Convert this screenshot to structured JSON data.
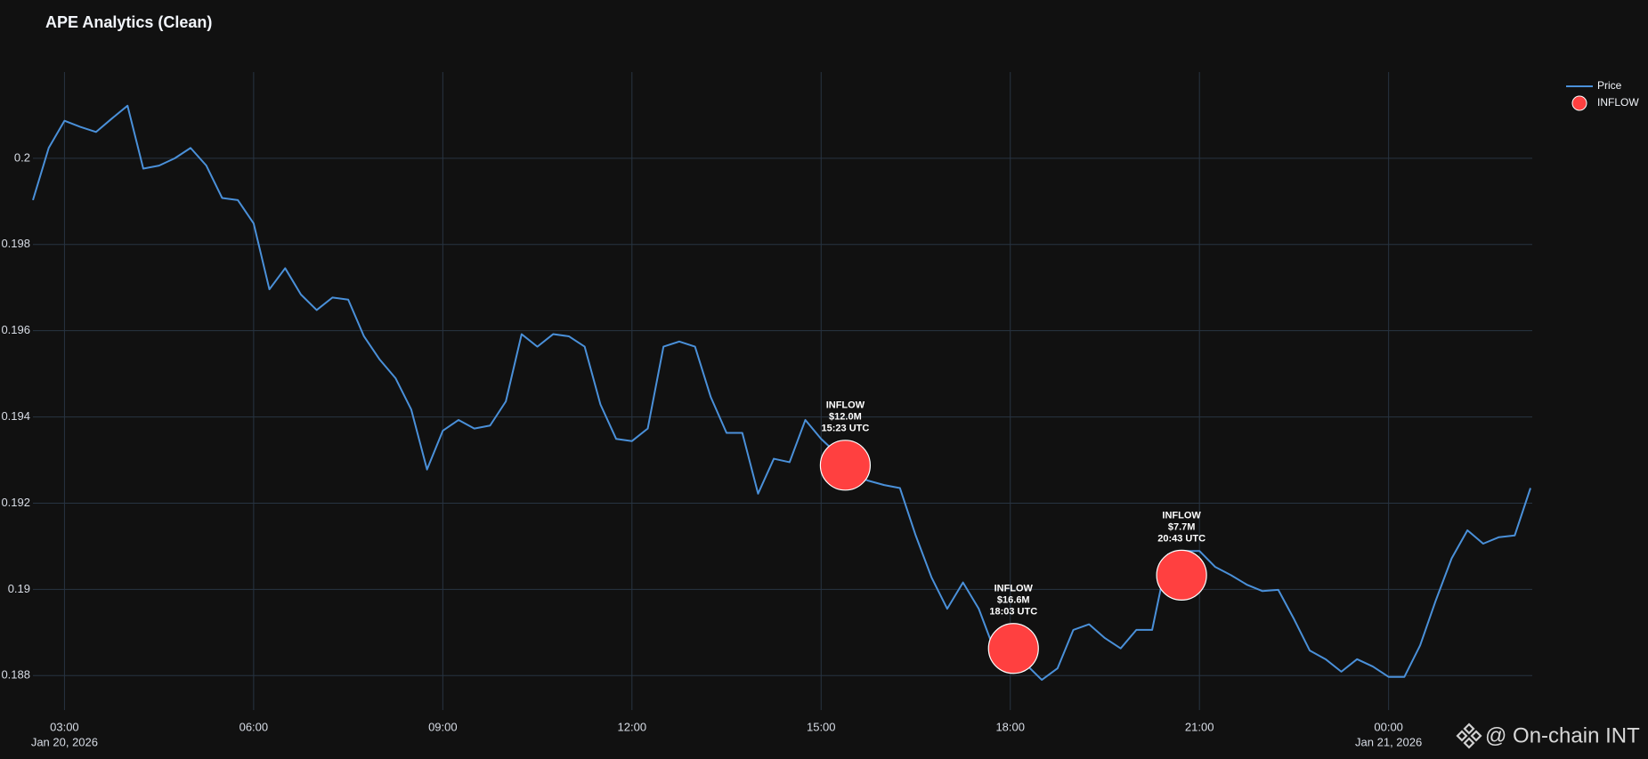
{
  "chart_data": {
    "type": "line",
    "title": "APE Analytics (Clean)",
    "watermark": "@ On-chain INT",
    "legend": "top-right",
    "grid": true,
    "xlim": [
      "2026-01-20T02:30",
      "2026-01-21T02:15"
    ],
    "xticks": [
      {
        "value": "2026-01-20T03:00",
        "label": "03:00",
        "sublabel": "Jan 20, 2026"
      },
      {
        "value": "2026-01-20T06:00",
        "label": "06:00"
      },
      {
        "value": "2026-01-20T09:00",
        "label": "09:00"
      },
      {
        "value": "2026-01-20T12:00",
        "label": "12:00"
      },
      {
        "value": "2026-01-20T15:00",
        "label": "15:00"
      },
      {
        "value": "2026-01-20T18:00",
        "label": "18:00"
      },
      {
        "value": "2026-01-20T21:00",
        "label": "21:00"
      },
      {
        "value": "2026-01-21T00:00",
        "label": "00:00",
        "sublabel": "Jan 21, 2026"
      }
    ],
    "ylim": [
      0.1872,
      0.202
    ],
    "yticks": [
      0.188,
      0.19,
      0.192,
      0.194,
      0.196,
      0.198,
      0.2
    ],
    "series": [
      {
        "name": "Price",
        "type": "line",
        "color": "#4a90d9",
        "x": [
          "2026-01-20T02:30",
          "2026-01-20T02:45",
          "2026-01-20T03:00",
          "2026-01-20T03:15",
          "2026-01-20T03:30",
          "2026-01-20T03:45",
          "2026-01-20T04:00",
          "2026-01-20T04:15",
          "2026-01-20T04:30",
          "2026-01-20T04:45",
          "2026-01-20T05:00",
          "2026-01-20T05:15",
          "2026-01-20T05:30",
          "2026-01-20T05:45",
          "2026-01-20T06:00",
          "2026-01-20T06:15",
          "2026-01-20T06:30",
          "2026-01-20T06:45",
          "2026-01-20T07:00",
          "2026-01-20T07:15",
          "2026-01-20T07:30",
          "2026-01-20T07:45",
          "2026-01-20T08:00",
          "2026-01-20T08:15",
          "2026-01-20T08:30",
          "2026-01-20T08:45",
          "2026-01-20T09:00",
          "2026-01-20T09:15",
          "2026-01-20T09:30",
          "2026-01-20T09:45",
          "2026-01-20T10:00",
          "2026-01-20T10:15",
          "2026-01-20T10:30",
          "2026-01-20T10:45",
          "2026-01-20T11:00",
          "2026-01-20T11:15",
          "2026-01-20T11:30",
          "2026-01-20T11:45",
          "2026-01-20T12:00",
          "2026-01-20T12:15",
          "2026-01-20T12:30",
          "2026-01-20T12:45",
          "2026-01-20T13:00",
          "2026-01-20T13:15",
          "2026-01-20T13:30",
          "2026-01-20T13:45",
          "2026-01-20T14:00",
          "2026-01-20T14:15",
          "2026-01-20T14:30",
          "2026-01-20T14:45",
          "2026-01-20T15:00",
          "2026-01-20T15:15",
          "2026-01-20T15:30",
          "2026-01-20T15:45",
          "2026-01-20T16:00",
          "2026-01-20T16:15",
          "2026-01-20T16:30",
          "2026-01-20T16:45",
          "2026-01-20T17:00",
          "2026-01-20T17:15",
          "2026-01-20T17:30",
          "2026-01-20T17:45",
          "2026-01-20T18:00",
          "2026-01-20T18:15",
          "2026-01-20T18:30",
          "2026-01-20T18:45",
          "2026-01-20T19:00",
          "2026-01-20T19:15",
          "2026-01-20T19:30",
          "2026-01-20T19:45",
          "2026-01-20T20:00",
          "2026-01-20T20:15",
          "2026-01-20T20:30",
          "2026-01-20T20:45",
          "2026-01-20T21:00",
          "2026-01-20T21:15",
          "2026-01-20T21:30",
          "2026-01-20T21:45",
          "2026-01-20T22:00",
          "2026-01-20T22:15",
          "2026-01-20T22:30",
          "2026-01-20T22:45",
          "2026-01-20T23:00",
          "2026-01-20T23:15",
          "2026-01-20T23:30",
          "2026-01-20T23:45",
          "2026-01-21T00:00",
          "2026-01-21T00:15",
          "2026-01-21T00:30",
          "2026-01-21T00:45",
          "2026-01-21T01:00",
          "2026-01-21T01:15",
          "2026-01-21T01:30",
          "2026-01-21T01:45",
          "2026-01-21T02:00",
          "2026-01-21T02:15"
        ],
        "values": [
          0.19903,
          0.20024,
          0.20087,
          0.20073,
          0.20061,
          0.20092,
          0.20122,
          0.19976,
          0.19983,
          0.2,
          0.20024,
          0.19983,
          0.19908,
          0.19903,
          0.19849,
          0.19696,
          0.19745,
          0.19684,
          0.19648,
          0.19677,
          0.19672,
          0.19587,
          0.19533,
          0.1949,
          0.19417,
          0.19278,
          0.19368,
          0.19393,
          0.19373,
          0.1938,
          0.19436,
          0.19592,
          0.19563,
          0.19592,
          0.19587,
          0.19563,
          0.19429,
          0.19349,
          0.19344,
          0.19373,
          0.19563,
          0.19575,
          0.19563,
          0.19446,
          0.19363,
          0.19363,
          0.19222,
          0.19303,
          0.19295,
          0.19393,
          0.19349,
          0.19315,
          0.19266,
          0.19252,
          0.19242,
          0.19235,
          0.19125,
          0.19028,
          0.18955,
          0.19016,
          0.18955,
          0.18858,
          0.18814,
          0.18826,
          0.1879,
          0.18817,
          0.18906,
          0.18919,
          0.18887,
          0.18863,
          0.18906,
          0.18906,
          0.19081,
          0.19089,
          0.19089,
          0.19052,
          0.19033,
          0.19011,
          0.18996,
          0.18999,
          0.18931,
          0.18858,
          0.18838,
          0.18809,
          0.18838,
          0.18821,
          0.18797,
          0.18797,
          0.1887,
          0.18975,
          0.19072,
          0.19137,
          0.19106,
          0.19121,
          0.19125,
          0.19235
        ]
      },
      {
        "name": "INFLOW",
        "type": "scatter",
        "color": "#ff4040",
        "x": [
          "2026-01-20T15:23",
          "2026-01-20T18:03",
          "2026-01-20T20:43"
        ],
        "x_labels": [
          "15:23 UTC",
          "18:03 UTC",
          "20:43 UTC"
        ],
        "values": [
          0.19288,
          0.18863,
          0.19033
        ],
        "amounts": [
          12000000,
          16600000,
          7700000
        ],
        "amount_labels": [
          "$12.0M",
          "$16.6M",
          "$7.7M"
        ]
      }
    ]
  }
}
